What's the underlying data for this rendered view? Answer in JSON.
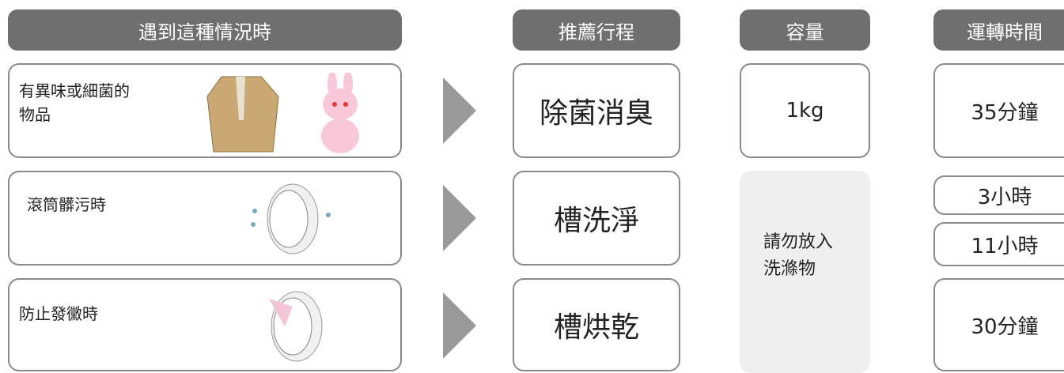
{
  "headers": [
    "遇到這種情況時",
    "推薦行程",
    "容量",
    "運轉時間"
  ],
  "rows": [
    {
      "situation": "有異味或細菌的物品",
      "course": "除菌消臭",
      "capacity": "1kg",
      "times": [
        "35分鐘"
      ]
    },
    {
      "situation": "滾筒髒污時",
      "course": "槽洗淨",
      "times": [
        "3小時",
        "11小時"
      ]
    },
    {
      "situation": "防止發黴時",
      "course": "槽烘乾",
      "times": [
        "30分鐘"
      ]
    }
  ],
  "capacity_note": "請勿放入洗滌物"
}
